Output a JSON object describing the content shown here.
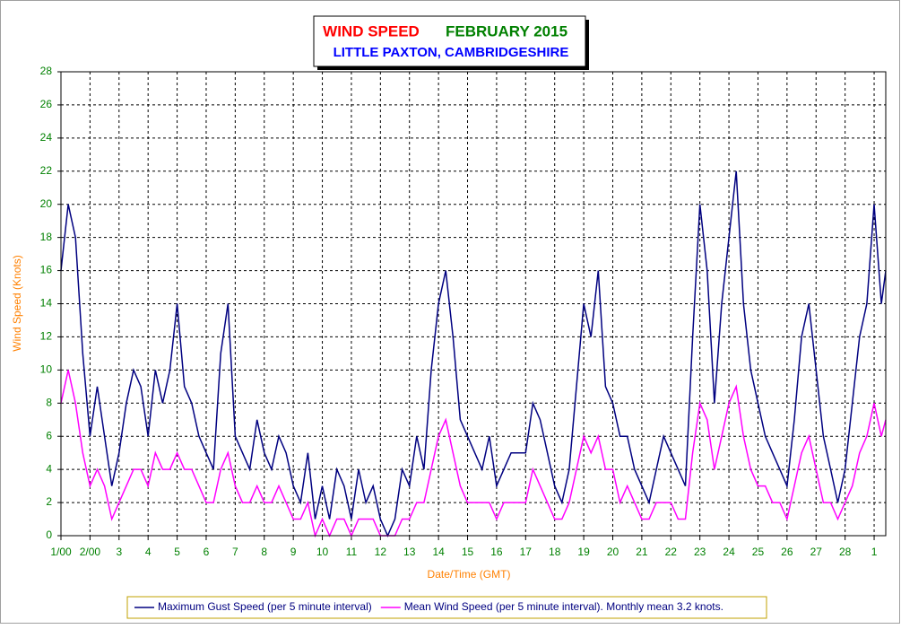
{
  "chart_data": {
    "type": "line",
    "title": "WIND SPEED",
    "subtitle": "FEBRUARY 2015",
    "location": "LITTLE PAXTON, CAMBRIDGESHIRE",
    "xlabel": "Date/Time (GMT)",
    "ylabel": "Wind Speed (Knots)",
    "xlim": [
      0,
      28.4
    ],
    "ylim": [
      0,
      28
    ],
    "xticks": [
      {
        "value": 0,
        "label": "1/00"
      },
      {
        "value": 1,
        "label": "2/00"
      },
      {
        "value": 2,
        "label": "3"
      },
      {
        "value": 3,
        "label": "4"
      },
      {
        "value": 4,
        "label": "5"
      },
      {
        "value": 5,
        "label": "6"
      },
      {
        "value": 6,
        "label": "7"
      },
      {
        "value": 7,
        "label": "8"
      },
      {
        "value": 8,
        "label": "9"
      },
      {
        "value": 9,
        "label": "10"
      },
      {
        "value": 10,
        "label": "11"
      },
      {
        "value": 11,
        "label": "12"
      },
      {
        "value": 12,
        "label": "13"
      },
      {
        "value": 13,
        "label": "14"
      },
      {
        "value": 14,
        "label": "15"
      },
      {
        "value": 15,
        "label": "16"
      },
      {
        "value": 16,
        "label": "17"
      },
      {
        "value": 17,
        "label": "18"
      },
      {
        "value": 18,
        "label": "19"
      },
      {
        "value": 19,
        "label": "20"
      },
      {
        "value": 20,
        "label": "21"
      },
      {
        "value": 21,
        "label": "22"
      },
      {
        "value": 22,
        "label": "23"
      },
      {
        "value": 23,
        "label": "24"
      },
      {
        "value": 24,
        "label": "25"
      },
      {
        "value": 25,
        "label": "26"
      },
      {
        "value": 26,
        "label": "27"
      },
      {
        "value": 27,
        "label": "28"
      },
      {
        "value": 28,
        "label": "1"
      }
    ],
    "yticks": [
      0,
      2,
      4,
      6,
      8,
      10,
      12,
      14,
      16,
      18,
      20,
      22,
      24,
      26,
      28
    ],
    "grid": true,
    "legend": "bottom",
    "x": [
      0,
      0.25,
      0.5,
      0.75,
      1,
      1.25,
      1.5,
      1.75,
      2,
      2.25,
      2.5,
      2.75,
      3,
      3.25,
      3.5,
      3.75,
      4,
      4.25,
      4.5,
      4.75,
      5,
      5.25,
      5.5,
      5.75,
      6,
      6.25,
      6.5,
      6.75,
      7,
      7.25,
      7.5,
      7.75,
      8,
      8.25,
      8.5,
      8.75,
      9,
      9.25,
      9.5,
      9.75,
      10,
      10.25,
      10.5,
      10.75,
      11,
      11.25,
      11.5,
      11.75,
      12,
      12.25,
      12.5,
      12.75,
      13,
      13.25,
      13.5,
      13.75,
      14,
      14.25,
      14.5,
      14.75,
      15,
      15.25,
      15.5,
      15.75,
      16,
      16.25,
      16.5,
      16.75,
      17,
      17.25,
      17.5,
      17.75,
      18,
      18.25,
      18.5,
      18.75,
      19,
      19.25,
      19.5,
      19.75,
      20,
      20.25,
      20.5,
      20.75,
      21,
      21.25,
      21.5,
      21.75,
      22,
      22.25,
      22.5,
      22.75,
      23,
      23.25,
      23.5,
      23.75,
      24,
      24.25,
      24.5,
      24.75,
      25,
      25.25,
      25.5,
      25.75,
      26,
      26.25,
      26.5,
      26.75,
      27,
      27.25,
      27.5,
      27.75,
      28,
      28.25,
      28.4
    ],
    "series": [
      {
        "name": "Maximum Gust Speed (per 5 minute interval)",
        "color": "#000080",
        "values": [
          16,
          20,
          18,
          11,
          6,
          9,
          6,
          3,
          5,
          8,
          10,
          9,
          6,
          10,
          8,
          10,
          14,
          9,
          8,
          6,
          5,
          4,
          11,
          14,
          6,
          5,
          4,
          7,
          5,
          4,
          6,
          5,
          3,
          2,
          5,
          1,
          3,
          1,
          4,
          3,
          1,
          4,
          2,
          3,
          1,
          0,
          1,
          4,
          3,
          6,
          4,
          10,
          14,
          16,
          12,
          7,
          6,
          5,
          4,
          6,
          3,
          4,
          5,
          5,
          5,
          8,
          7,
          5,
          3,
          2,
          4,
          9,
          14,
          12,
          16,
          9,
          8,
          6,
          6,
          4,
          3,
          2,
          4,
          6,
          5,
          4,
          3,
          12,
          20,
          16,
          8,
          14,
          18,
          22,
          14,
          10,
          8,
          6,
          5,
          4,
          3,
          7,
          12,
          14,
          10,
          6,
          4,
          2,
          4,
          8,
          12,
          14,
          20,
          14,
          16
        ]
      },
      {
        "name": "Mean Wind Speed (per 5 minute interval). Monthly mean 3.2 knots.",
        "color": "#ff00ff",
        "values": [
          8,
          10,
          8,
          5,
          3,
          4,
          3,
          1,
          2,
          3,
          4,
          4,
          3,
          5,
          4,
          4,
          5,
          4,
          4,
          3,
          2,
          2,
          4,
          5,
          3,
          2,
          2,
          3,
          2,
          2,
          3,
          2,
          1,
          1,
          2,
          0,
          1,
          0,
          1,
          1,
          0,
          1,
          1,
          1,
          0,
          0,
          0,
          1,
          1,
          2,
          2,
          4,
          6,
          7,
          5,
          3,
          2,
          2,
          2,
          2,
          1,
          2,
          2,
          2,
          2,
          4,
          3,
          2,
          1,
          1,
          2,
          4,
          6,
          5,
          6,
          4,
          4,
          2,
          3,
          2,
          1,
          1,
          2,
          2,
          2,
          1,
          1,
          5,
          8,
          7,
          4,
          6,
          8,
          9,
          6,
          4,
          3,
          3,
          2,
          2,
          1,
          3,
          5,
          6,
          4,
          2,
          2,
          1,
          2,
          3,
          5,
          6,
          8,
          6,
          7
        ]
      }
    ]
  }
}
